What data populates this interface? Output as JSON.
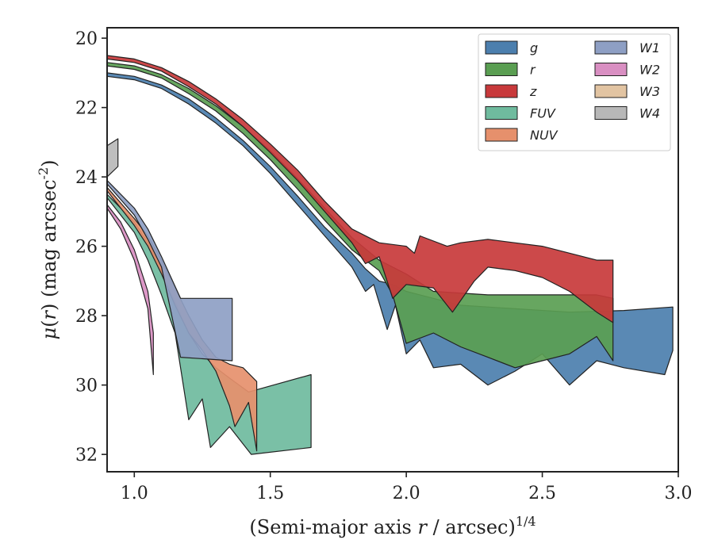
{
  "chart_data": {
    "type": "area",
    "xlabel": "(Semi-major axis r / arcsec)^1/4",
    "ylabel": "μ(r) (mag arcsec^-2)",
    "xlim": [
      0.9,
      3.0
    ],
    "ylim": [
      32.5,
      19.7
    ],
    "y_inverted": true,
    "xticks": [
      "1.0",
      "1.5",
      "2.0",
      "2.5",
      "3.0"
    ],
    "xtick_values": [
      1.0,
      1.5,
      2.0,
      2.5,
      3.0
    ],
    "yticks": [
      "20",
      "22",
      "24",
      "26",
      "28",
      "30",
      "32"
    ],
    "ytick_values": [
      20,
      22,
      24,
      26,
      28,
      30,
      32
    ],
    "grid": false,
    "legend_position": "top-right",
    "legend_columns": 2,
    "series": [
      {
        "name": "g",
        "color": "#4c7fae",
        "upper": [
          [
            0.9,
            21.0
          ],
          [
            1.0,
            21.1
          ],
          [
            1.1,
            21.35
          ],
          [
            1.2,
            21.75
          ],
          [
            1.3,
            22.3
          ],
          [
            1.4,
            22.95
          ],
          [
            1.5,
            23.7
          ],
          [
            1.6,
            24.55
          ],
          [
            1.7,
            25.45
          ],
          [
            1.8,
            26.2
          ],
          [
            1.85,
            26.65
          ],
          [
            1.9,
            27.0
          ],
          [
            1.95,
            27.1
          ],
          [
            2.0,
            27.3
          ],
          [
            2.05,
            27.4
          ],
          [
            2.1,
            27.5
          ],
          [
            2.2,
            27.7
          ],
          [
            2.4,
            27.8
          ],
          [
            2.6,
            27.9
          ],
          [
            2.8,
            27.85
          ],
          [
            2.98,
            27.75
          ]
        ],
        "lower": [
          [
            0.9,
            21.1
          ],
          [
            1.0,
            21.2
          ],
          [
            1.1,
            21.45
          ],
          [
            1.2,
            21.9
          ],
          [
            1.3,
            22.45
          ],
          [
            1.4,
            23.1
          ],
          [
            1.5,
            23.9
          ],
          [
            1.6,
            24.8
          ],
          [
            1.7,
            25.7
          ],
          [
            1.8,
            26.6
          ],
          [
            1.85,
            27.3
          ],
          [
            1.88,
            27.1
          ],
          [
            1.93,
            28.4
          ],
          [
            1.96,
            27.7
          ],
          [
            2.0,
            29.1
          ],
          [
            2.05,
            28.7
          ],
          [
            2.1,
            29.5
          ],
          [
            2.2,
            29.4
          ],
          [
            2.3,
            30.0
          ],
          [
            2.4,
            29.6
          ],
          [
            2.5,
            29.1
          ],
          [
            2.6,
            30.0
          ],
          [
            2.7,
            29.3
          ],
          [
            2.8,
            29.5
          ],
          [
            2.95,
            29.7
          ],
          [
            2.98,
            29.0
          ]
        ]
      },
      {
        "name": "r",
        "color": "#5a9e52",
        "upper": [
          [
            0.9,
            20.7
          ],
          [
            1.0,
            20.8
          ],
          [
            1.1,
            21.05
          ],
          [
            1.2,
            21.45
          ],
          [
            1.3,
            21.95
          ],
          [
            1.4,
            22.55
          ],
          [
            1.5,
            23.25
          ],
          [
            1.6,
            24.05
          ],
          [
            1.7,
            24.9
          ],
          [
            1.8,
            25.75
          ],
          [
            1.9,
            26.4
          ],
          [
            2.0,
            26.8
          ],
          [
            2.1,
            27.3
          ],
          [
            2.3,
            27.4
          ],
          [
            2.5,
            27.4
          ],
          [
            2.7,
            27.4
          ],
          [
            2.76,
            27.5
          ]
        ],
        "lower": [
          [
            0.9,
            20.8
          ],
          [
            1.0,
            20.9
          ],
          [
            1.1,
            21.15
          ],
          [
            1.2,
            21.6
          ],
          [
            1.3,
            22.1
          ],
          [
            1.4,
            22.75
          ],
          [
            1.5,
            23.5
          ],
          [
            1.6,
            24.35
          ],
          [
            1.7,
            25.25
          ],
          [
            1.8,
            26.1
          ],
          [
            1.9,
            26.7
          ],
          [
            1.95,
            27.4
          ],
          [
            2.0,
            28.8
          ],
          [
            2.1,
            28.5
          ],
          [
            2.2,
            28.9
          ],
          [
            2.3,
            29.2
          ],
          [
            2.4,
            29.5
          ],
          [
            2.5,
            29.3
          ],
          [
            2.6,
            29.1
          ],
          [
            2.7,
            28.6
          ],
          [
            2.76,
            29.3
          ]
        ]
      },
      {
        "name": "z",
        "color": "#c8393b",
        "upper": [
          [
            0.9,
            20.5
          ],
          [
            1.0,
            20.6
          ],
          [
            1.1,
            20.85
          ],
          [
            1.2,
            21.25
          ],
          [
            1.3,
            21.75
          ],
          [
            1.4,
            22.35
          ],
          [
            1.5,
            23.05
          ],
          [
            1.6,
            23.8
          ],
          [
            1.7,
            24.7
          ],
          [
            1.8,
            25.5
          ],
          [
            1.9,
            25.9
          ],
          [
            2.0,
            26.0
          ],
          [
            2.03,
            26.2
          ],
          [
            2.05,
            25.7
          ],
          [
            2.15,
            26.0
          ],
          [
            2.2,
            25.9
          ],
          [
            2.3,
            25.8
          ],
          [
            2.5,
            26.0
          ],
          [
            2.7,
            26.4
          ],
          [
            2.76,
            26.4
          ]
        ],
        "lower": [
          [
            0.9,
            20.6
          ],
          [
            1.0,
            20.7
          ],
          [
            1.1,
            20.95
          ],
          [
            1.2,
            21.4
          ],
          [
            1.3,
            21.9
          ],
          [
            1.4,
            22.55
          ],
          [
            1.5,
            23.3
          ],
          [
            1.6,
            24.1
          ],
          [
            1.7,
            25.0
          ],
          [
            1.8,
            25.9
          ],
          [
            1.85,
            26.5
          ],
          [
            1.9,
            26.3
          ],
          [
            1.95,
            27.5
          ],
          [
            2.0,
            27.1
          ],
          [
            2.1,
            27.2
          ],
          [
            2.17,
            27.9
          ],
          [
            2.25,
            27.0
          ],
          [
            2.3,
            26.6
          ],
          [
            2.4,
            26.7
          ],
          [
            2.5,
            26.9
          ],
          [
            2.6,
            27.3
          ],
          [
            2.7,
            27.9
          ],
          [
            2.76,
            28.2
          ]
        ]
      },
      {
        "name": "FUV",
        "color": "#6fbb9e",
        "upper": [
          [
            0.9,
            24.5
          ],
          [
            1.0,
            25.3
          ],
          [
            1.05,
            25.9
          ],
          [
            1.1,
            26.7
          ],
          [
            1.15,
            27.6
          ],
          [
            1.2,
            28.5
          ],
          [
            1.25,
            29.1
          ],
          [
            1.3,
            29.5
          ],
          [
            1.35,
            29.8
          ],
          [
            1.42,
            30.2
          ],
          [
            1.65,
            29.7
          ]
        ],
        "lower": [
          [
            0.9,
            24.6
          ],
          [
            1.0,
            25.6
          ],
          [
            1.05,
            26.4
          ],
          [
            1.1,
            27.4
          ],
          [
            1.15,
            28.5
          ],
          [
            1.2,
            31.0
          ],
          [
            1.25,
            30.4
          ],
          [
            1.28,
            31.8
          ],
          [
            1.35,
            31.2
          ],
          [
            1.43,
            32.0
          ],
          [
            1.65,
            31.8
          ]
        ]
      },
      {
        "name": "NUV",
        "color": "#e6906c",
        "upper": [
          [
            0.9,
            24.3
          ],
          [
            1.0,
            25.2
          ],
          [
            1.05,
            25.7
          ],
          [
            1.1,
            26.4
          ],
          [
            1.15,
            27.2
          ],
          [
            1.2,
            28.0
          ],
          [
            1.25,
            28.7
          ],
          [
            1.3,
            29.2
          ],
          [
            1.35,
            29.4
          ],
          [
            1.4,
            29.5
          ],
          [
            1.45,
            29.9
          ]
        ],
        "lower": [
          [
            0.9,
            24.4
          ],
          [
            1.0,
            25.4
          ],
          [
            1.05,
            26.0
          ],
          [
            1.1,
            26.8
          ],
          [
            1.15,
            27.7
          ],
          [
            1.2,
            28.5
          ],
          [
            1.25,
            29.0
          ],
          [
            1.3,
            29.6
          ],
          [
            1.35,
            30.6
          ],
          [
            1.37,
            31.2
          ],
          [
            1.42,
            30.5
          ],
          [
            1.45,
            31.9
          ]
        ]
      },
      {
        "name": "W1",
        "color": "#8e9fc4",
        "upper": [
          [
            0.9,
            24.1
          ],
          [
            1.0,
            24.9
          ],
          [
            1.05,
            25.5
          ],
          [
            1.1,
            26.3
          ],
          [
            1.17,
            27.5
          ],
          [
            1.36,
            27.5
          ]
        ],
        "lower": [
          [
            0.9,
            24.2
          ],
          [
            1.0,
            25.1
          ],
          [
            1.05,
            25.8
          ],
          [
            1.1,
            26.6
          ],
          [
            1.17,
            29.2
          ],
          [
            1.36,
            29.3
          ]
        ]
      },
      {
        "name": "W2",
        "color": "#d98fc2",
        "upper": [
          [
            0.9,
            24.8
          ],
          [
            0.95,
            25.3
          ],
          [
            1.0,
            26.1
          ],
          [
            1.05,
            27.3
          ],
          [
            1.07,
            28.5
          ]
        ],
        "lower": [
          [
            0.9,
            24.9
          ],
          [
            0.95,
            25.5
          ],
          [
            1.0,
            26.4
          ],
          [
            1.05,
            27.8
          ],
          [
            1.07,
            29.7
          ]
        ]
      },
      {
        "name": "W3",
        "color": "#e2c4a2",
        "upper": [],
        "lower": []
      },
      {
        "name": "W4",
        "color": "#b8b8b8",
        "upper": [
          [
            0.9,
            23.1
          ],
          [
            0.94,
            22.9
          ]
        ],
        "lower": [
          [
            0.9,
            24.0
          ],
          [
            0.94,
            23.7
          ]
        ]
      }
    ]
  }
}
